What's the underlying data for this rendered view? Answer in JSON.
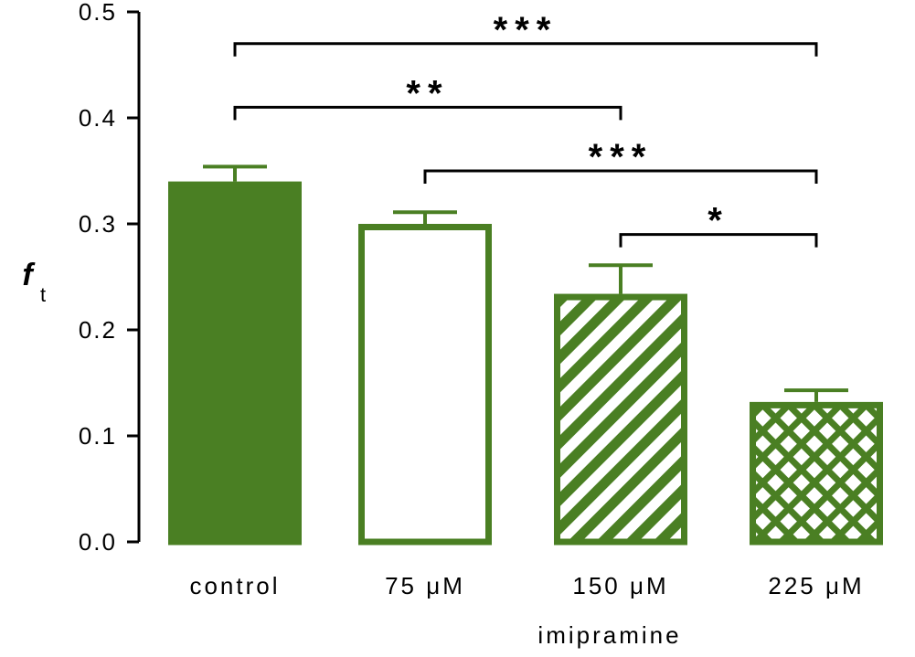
{
  "chart_data": {
    "type": "bar",
    "categories": [
      "control",
      "75 μM",
      "150 μM",
      "225 μM"
    ],
    "group_label": "imipramine",
    "values": [
      0.34,
      0.3,
      0.234,
      0.132
    ],
    "errors": [
      0.014,
      0.011,
      0.027,
      0.011
    ],
    "fills": [
      "solid",
      "open",
      "diagonal-hatch",
      "crosshatch"
    ],
    "color": "#4a7f23",
    "ylabel": "f",
    "ylabel_subscript": "t",
    "ylim": [
      0,
      0.5
    ],
    "yticks": [
      "0.0",
      "0.1",
      "0.2",
      "0.3",
      "0.4",
      "0.5"
    ],
    "ytick_values": [
      0,
      0.1,
      0.2,
      0.3,
      0.4,
      0.5
    ],
    "significance": [
      {
        "from": 0,
        "to": 3,
        "label": "***",
        "y": 0.47
      },
      {
        "from": 0,
        "to": 2,
        "label": "**",
        "y": 0.41
      },
      {
        "from": 1,
        "to": 3,
        "label": "***",
        "y": 0.35
      },
      {
        "from": 2,
        "to": 3,
        "label": "*",
        "y": 0.29
      }
    ],
    "grid": false,
    "legend": "none"
  }
}
